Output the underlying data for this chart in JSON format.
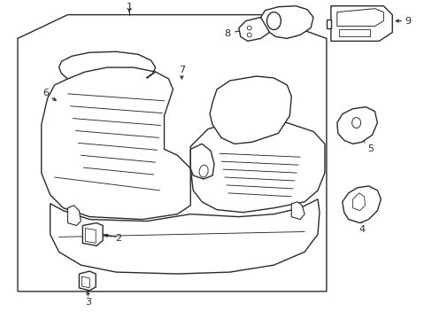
{
  "bg_color": "#ffffff",
  "line_color": "#2a2a2a",
  "lw": 1.0,
  "tlw": 0.65
}
